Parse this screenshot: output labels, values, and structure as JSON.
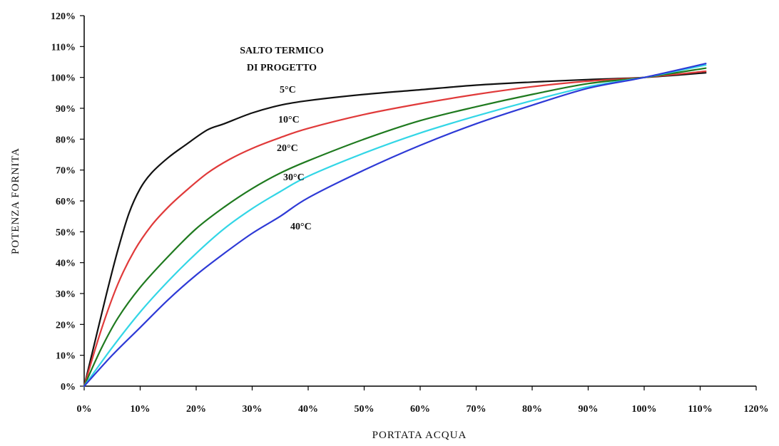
{
  "chart_data": {
    "type": "line",
    "xlabel": "PORTATA ACQUA",
    "ylabel": "POTENZA FORNITA",
    "xlim": [
      0,
      120
    ],
    "ylim": [
      0,
      120
    ],
    "x_ticks": [
      "0%",
      "10%",
      "20%",
      "30%",
      "40%",
      "50%",
      "60%",
      "70%",
      "80%",
      "90%",
      "100%",
      "110%",
      "120%"
    ],
    "y_ticks": [
      "0%",
      "10%",
      "20%",
      "30%",
      "40%",
      "50%",
      "60%",
      "70%",
      "80%",
      "90%",
      "100%",
      "110%",
      "120%"
    ],
    "annotation_line1": "SALTO TERMICO",
    "annotation_line2": "DI PROGETTO",
    "grid": false,
    "series": [
      {
        "name": "5°C",
        "color": "#111111",
        "x": [
          0,
          2,
          4,
          6,
          8,
          10,
          12,
          15,
          18,
          22,
          25,
          30,
          35,
          40,
          50,
          60,
          70,
          80,
          90,
          100,
          111
        ],
        "y": [
          0,
          15,
          30,
          44,
          56,
          64,
          69,
          74,
          78,
          83,
          85,
          88.5,
          91,
          92.5,
          94.5,
          96,
          97.5,
          98.5,
          99.3,
          100,
          101.5
        ]
      },
      {
        "name": "10°C",
        "color": "#e03a3a",
        "x": [
          0,
          3,
          6,
          9,
          12,
          15,
          18,
          22,
          26,
          30,
          35,
          40,
          50,
          60,
          70,
          80,
          90,
          100,
          111
        ],
        "y": [
          0,
          18,
          33,
          44,
          52,
          58,
          63,
          69,
          73.5,
          77,
          80.5,
          83.5,
          88,
          91.5,
          94.5,
          97,
          98.8,
          100,
          102
        ]
      },
      {
        "name": "20°C",
        "color": "#1f7a1f",
        "x": [
          0,
          3,
          6,
          10,
          15,
          20,
          25,
          30,
          35,
          40,
          50,
          60,
          70,
          80,
          90,
          100,
          111
        ],
        "y": [
          0,
          12,
          22,
          32,
          42,
          51,
          58,
          64,
          69,
          73,
          80,
          86,
          90.5,
          94.5,
          98,
          100,
          103
        ]
      },
      {
        "name": "30°C",
        "color": "#33d6e6",
        "x": [
          0,
          5,
          10,
          15,
          20,
          25,
          30,
          35,
          40,
          50,
          60,
          70,
          80,
          90,
          100,
          111
        ],
        "y": [
          0,
          12.5,
          24,
          34,
          43,
          51,
          57.5,
          63,
          68,
          75.5,
          82,
          87.5,
          92.5,
          97,
          100,
          104
        ]
      },
      {
        "name": "40°C",
        "color": "#2e3ad6",
        "x": [
          0,
          5,
          10,
          15,
          20,
          25,
          30,
          35,
          40,
          50,
          60,
          70,
          80,
          90,
          100,
          111
        ],
        "y": [
          0,
          10,
          19,
          28,
          36,
          43,
          49.5,
          55,
          61,
          70,
          78,
          85,
          91,
          96.5,
          100,
          104.5
        ]
      }
    ]
  }
}
